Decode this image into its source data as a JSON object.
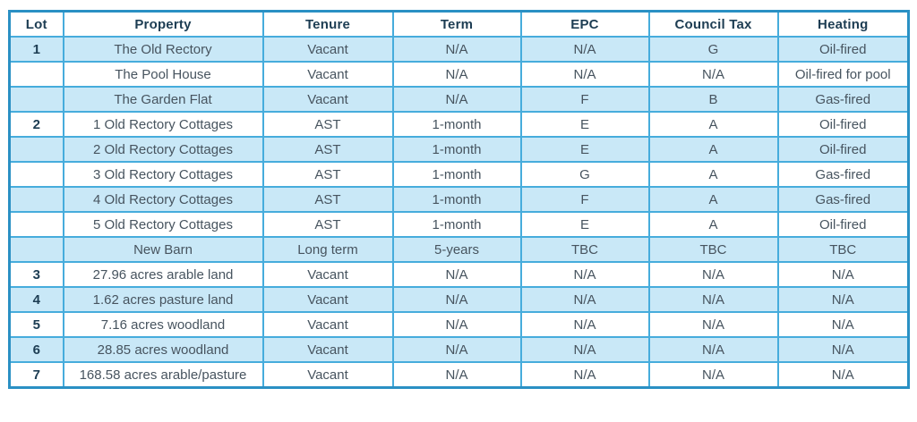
{
  "colors": {
    "row_shaded_bg": "#c9e8f7",
    "row_plain_bg": "#ffffff",
    "grid_line": "#46acdc",
    "outer_border": "#2a90c4",
    "header_text": "#1d3d53",
    "body_text": "#47545f"
  },
  "table": {
    "columns": [
      {
        "key": "lot",
        "label": "Lot"
      },
      {
        "key": "property",
        "label": "Property"
      },
      {
        "key": "tenure",
        "label": "Tenure"
      },
      {
        "key": "term",
        "label": "Term"
      },
      {
        "key": "epc",
        "label": "EPC"
      },
      {
        "key": "council_tax",
        "label": "Council Tax"
      },
      {
        "key": "heating",
        "label": "Heating"
      }
    ],
    "rows": [
      {
        "lot": "1",
        "property": "The Old Rectory",
        "tenure": "Vacant",
        "term": "N/A",
        "epc": "N/A",
        "council_tax": "G",
        "heating": "Oil-fired",
        "shaded": true
      },
      {
        "lot": "",
        "property": "The Pool House",
        "tenure": "Vacant",
        "term": "N/A",
        "epc": "N/A",
        "council_tax": "N/A",
        "heating": "Oil-fired for pool",
        "shaded": false
      },
      {
        "lot": "",
        "property": "The Garden Flat",
        "tenure": "Vacant",
        "term": "N/A",
        "epc": "F",
        "council_tax": "B",
        "heating": "Gas-fired",
        "shaded": true
      },
      {
        "lot": "2",
        "property": "1 Old Rectory Cottages",
        "tenure": "AST",
        "term": "1-month",
        "epc": "E",
        "council_tax": "A",
        "heating": "Oil-fired",
        "shaded": false
      },
      {
        "lot": "",
        "property": "2 Old Rectory Cottages",
        "tenure": "AST",
        "term": "1-month",
        "epc": "E",
        "council_tax": "A",
        "heating": "Oil-fired",
        "shaded": true
      },
      {
        "lot": "",
        "property": "3 Old Rectory Cottages",
        "tenure": "AST",
        "term": "1-month",
        "epc": "G",
        "council_tax": "A",
        "heating": "Gas-fired",
        "shaded": false
      },
      {
        "lot": "",
        "property": "4 Old Rectory Cottages",
        "tenure": "AST",
        "term": "1-month",
        "epc": "F",
        "council_tax": "A",
        "heating": "Gas-fired",
        "shaded": true
      },
      {
        "lot": "",
        "property": "5 Old Rectory Cottages",
        "tenure": "AST",
        "term": "1-month",
        "epc": "E",
        "council_tax": "A",
        "heating": "Oil-fired",
        "shaded": false
      },
      {
        "lot": "",
        "property": "New Barn",
        "tenure": "Long term",
        "term": "5-years",
        "epc": "TBC",
        "council_tax": "TBC",
        "heating": "TBC",
        "shaded": true
      },
      {
        "lot": "3",
        "property": "27.96 acres arable land",
        "tenure": "Vacant",
        "term": "N/A",
        "epc": "N/A",
        "council_tax": "N/A",
        "heating": "N/A",
        "shaded": false
      },
      {
        "lot": "4",
        "property": "1.62 acres pasture land",
        "tenure": "Vacant",
        "term": "N/A",
        "epc": "N/A",
        "council_tax": "N/A",
        "heating": "N/A",
        "shaded": true
      },
      {
        "lot": "5",
        "property": "7.16 acres woodland",
        "tenure": "Vacant",
        "term": "N/A",
        "epc": "N/A",
        "council_tax": "N/A",
        "heating": "N/A",
        "shaded": false
      },
      {
        "lot": "6",
        "property": "28.85 acres woodland",
        "tenure": "Vacant",
        "term": "N/A",
        "epc": "N/A",
        "council_tax": "N/A",
        "heating": "N/A",
        "shaded": true
      },
      {
        "lot": "7",
        "property": "168.58 acres arable/pasture",
        "tenure": "Vacant",
        "term": "N/A",
        "epc": "N/A",
        "council_tax": "N/A",
        "heating": "N/A",
        "shaded": false
      }
    ]
  }
}
